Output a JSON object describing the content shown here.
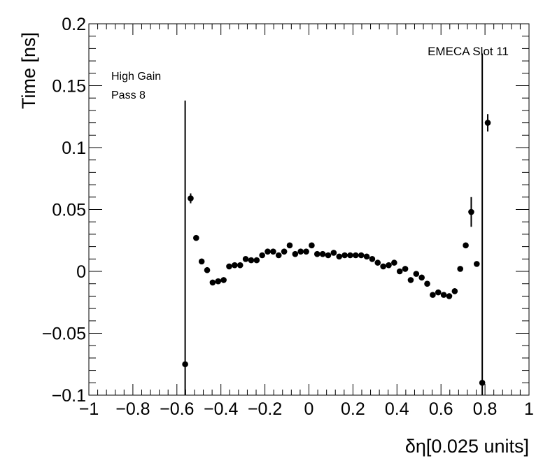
{
  "chart_data": {
    "type": "scatter",
    "xlabel": "δη[0.025 units]",
    "ylabel": "Time [ns]",
    "xlim": [
      -1,
      1
    ],
    "ylim": [
      -0.1,
      0.2
    ],
    "grid": false,
    "x_ticks": [
      -1,
      -0.8,
      -0.6,
      -0.4,
      -0.2,
      0,
      0.2,
      0.4,
      0.6,
      0.8,
      1
    ],
    "x_tick_labels": [
      "−1",
      "−0.8",
      "−0.6",
      "−0.4",
      "−0.2",
      "0",
      "0.2",
      "0.4",
      "0.6",
      "0.8",
      "1"
    ],
    "y_ticks": [
      -0.1,
      -0.05,
      0,
      0.05,
      0.1,
      0.15,
      0.2
    ],
    "y_tick_labels": [
      "−0.1",
      "−0.05",
      "0",
      "0.05",
      "0.1",
      "0.15",
      "0.2"
    ],
    "annotations": {
      "gain": "High Gain",
      "pass": "Pass 8",
      "slot": "EMECA Slot 11"
    },
    "series": [
      {
        "points": [
          {
            "x": -0.5625,
            "y": -0.075,
            "err": 0.213
          },
          {
            "x": -0.5375,
            "y": 0.059,
            "err": 0.004
          },
          {
            "x": -0.5125,
            "y": 0.027,
            "err": 0.002
          },
          {
            "x": -0.4875,
            "y": 0.008,
            "err": 0.002
          },
          {
            "x": -0.4625,
            "y": 0.001,
            "err": 0.002
          },
          {
            "x": -0.4375,
            "y": -0.009,
            "err": 0.002
          },
          {
            "x": -0.4125,
            "y": -0.008,
            "err": 0.002
          },
          {
            "x": -0.3875,
            "y": -0.007,
            "err": 0.002
          },
          {
            "x": -0.3625,
            "y": 0.004,
            "err": 0.002
          },
          {
            "x": -0.3375,
            "y": 0.005,
            "err": 0.002
          },
          {
            "x": -0.3125,
            "y": 0.005,
            "err": 0.002
          },
          {
            "x": -0.2875,
            "y": 0.01,
            "err": 0.002
          },
          {
            "x": -0.2625,
            "y": 0.009,
            "err": 0.002
          },
          {
            "x": -0.2375,
            "y": 0.009,
            "err": 0.002
          },
          {
            "x": -0.2125,
            "y": 0.013,
            "err": 0.002
          },
          {
            "x": -0.1875,
            "y": 0.016,
            "err": 0.002
          },
          {
            "x": -0.1625,
            "y": 0.016,
            "err": 0.002
          },
          {
            "x": -0.1375,
            "y": 0.013,
            "err": 0.002
          },
          {
            "x": -0.1125,
            "y": 0.016,
            "err": 0.002
          },
          {
            "x": -0.0875,
            "y": 0.021,
            "err": 0.002
          },
          {
            "x": -0.0625,
            "y": 0.014,
            "err": 0.002
          },
          {
            "x": -0.0375,
            "y": 0.016,
            "err": 0.002
          },
          {
            "x": -0.0125,
            "y": 0.016,
            "err": 0.002
          },
          {
            "x": 0.0125,
            "y": 0.021,
            "err": 0.002
          },
          {
            "x": 0.0375,
            "y": 0.014,
            "err": 0.002
          },
          {
            "x": 0.0625,
            "y": 0.014,
            "err": 0.002
          },
          {
            "x": 0.0875,
            "y": 0.013,
            "err": 0.002
          },
          {
            "x": 0.1125,
            "y": 0.015,
            "err": 0.002
          },
          {
            "x": 0.1375,
            "y": 0.012,
            "err": 0.002
          },
          {
            "x": 0.1625,
            "y": 0.013,
            "err": 0.002
          },
          {
            "x": 0.1875,
            "y": 0.013,
            "err": 0.002
          },
          {
            "x": 0.2125,
            "y": 0.013,
            "err": 0.002
          },
          {
            "x": 0.2375,
            "y": 0.013,
            "err": 0.002
          },
          {
            "x": 0.2625,
            "y": 0.012,
            "err": 0.002
          },
          {
            "x": 0.2875,
            "y": 0.01,
            "err": 0.002
          },
          {
            "x": 0.3125,
            "y": 0.007,
            "err": 0.002
          },
          {
            "x": 0.3375,
            "y": 0.004,
            "err": 0.002
          },
          {
            "x": 0.3625,
            "y": 0.005,
            "err": 0.002
          },
          {
            "x": 0.3875,
            "y": 0.007,
            "err": 0.002
          },
          {
            "x": 0.4125,
            "y": 0.0,
            "err": 0.002
          },
          {
            "x": 0.4375,
            "y": 0.002,
            "err": 0.002
          },
          {
            "x": 0.4625,
            "y": -0.007,
            "err": 0.002
          },
          {
            "x": 0.4875,
            "y": -0.002,
            "err": 0.002
          },
          {
            "x": 0.5125,
            "y": -0.005,
            "err": 0.002
          },
          {
            "x": 0.5375,
            "y": -0.01,
            "err": 0.002
          },
          {
            "x": 0.5625,
            "y": -0.019,
            "err": 0.002
          },
          {
            "x": 0.5875,
            "y": -0.017,
            "err": 0.002
          },
          {
            "x": 0.6125,
            "y": -0.019,
            "err": 0.002
          },
          {
            "x": 0.6375,
            "y": -0.02,
            "err": 0.002
          },
          {
            "x": 0.6625,
            "y": -0.016,
            "err": 0.002
          },
          {
            "x": 0.6875,
            "y": 0.002,
            "err": 0.002
          },
          {
            "x": 0.7125,
            "y": 0.021,
            "err": 0.002
          },
          {
            "x": 0.7375,
            "y": 0.048,
            "err": 0.012
          },
          {
            "x": 0.7625,
            "y": 0.006,
            "err": 0.002
          },
          {
            "x": 0.7875,
            "y": -0.09,
            "err": 0.266
          },
          {
            "x": 0.8125,
            "y": 0.12,
            "err": 0.007
          }
        ]
      }
    ]
  }
}
